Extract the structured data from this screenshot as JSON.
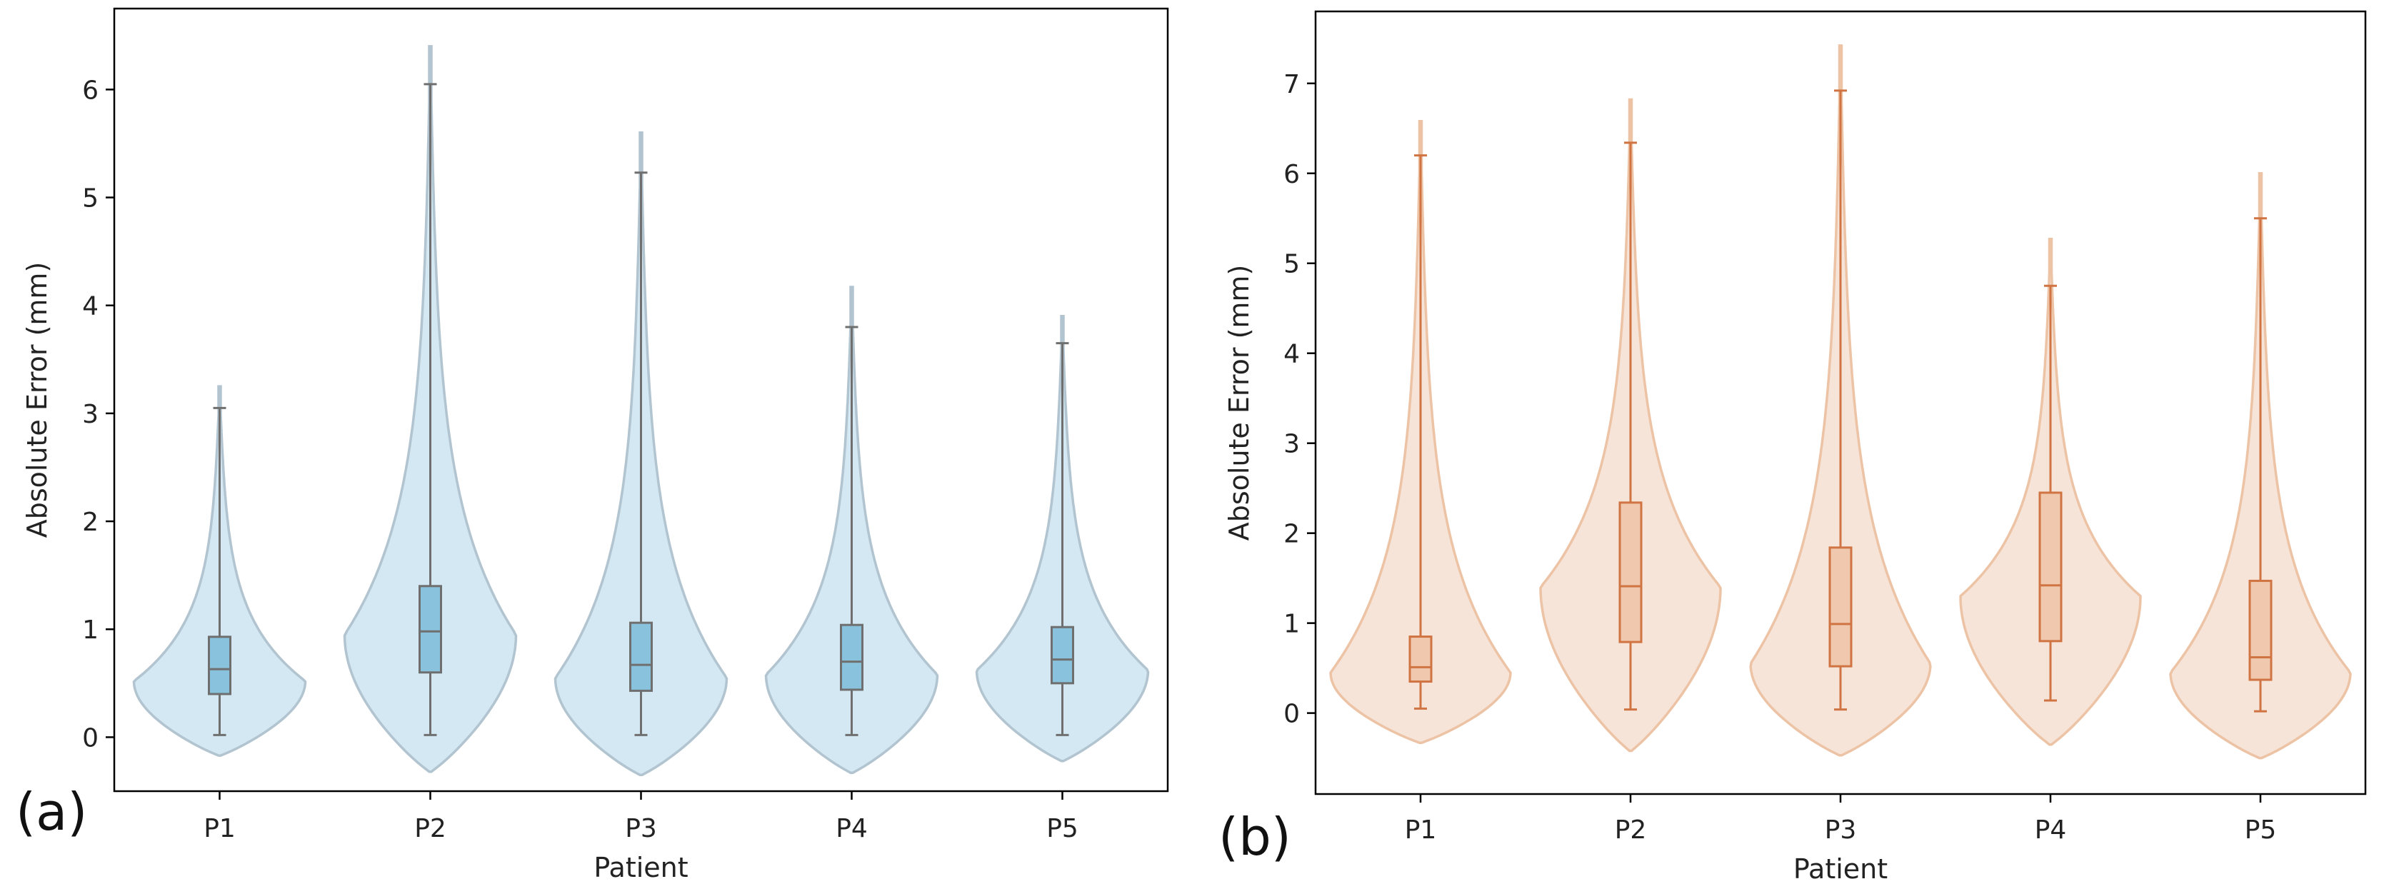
{
  "chart_data": [
    {
      "panel_label": "(a)",
      "type": "violin",
      "xlabel": "Patient",
      "ylabel": "Absolute Error (mm)",
      "ylim": [
        -0.5,
        6.75
      ],
      "yticks": [
        "0",
        "1",
        "2",
        "3",
        "4",
        "5",
        "6"
      ],
      "categories": [
        "P1",
        "P2",
        "P3",
        "P4",
        "P5"
      ],
      "colors": {
        "fill": "#d3e8f2",
        "edge": "#b2c4cf",
        "box": "#89c2dc",
        "line": "#6f6f6f"
      },
      "violins": [
        {
          "name": "P1",
          "kde_min": -0.17,
          "kde_max": 3.25,
          "whisker_low": 0.02,
          "whisker_high": 3.05,
          "q1": 0.4,
          "median": 0.63,
          "q3": 0.93,
          "mode": 0.52
        },
        {
          "name": "P2",
          "kde_min": -0.32,
          "kde_max": 6.4,
          "whisker_low": 0.02,
          "whisker_high": 6.05,
          "q1": 0.6,
          "median": 0.98,
          "q3": 1.4,
          "mode": 0.95
        },
        {
          "name": "P3",
          "kde_min": -0.35,
          "kde_max": 5.6,
          "whisker_low": 0.02,
          "whisker_high": 5.23,
          "q1": 0.43,
          "median": 0.67,
          "q3": 1.06,
          "mode": 0.55
        },
        {
          "name": "P4",
          "kde_min": -0.33,
          "kde_max": 4.17,
          "whisker_low": 0.02,
          "whisker_high": 3.8,
          "q1": 0.44,
          "median": 0.7,
          "q3": 1.04,
          "mode": 0.58
        },
        {
          "name": "P5",
          "kde_min": -0.22,
          "kde_max": 3.9,
          "whisker_low": 0.02,
          "whisker_high": 3.65,
          "q1": 0.5,
          "median": 0.72,
          "q3": 1.02,
          "mode": 0.62
        }
      ]
    },
    {
      "panel_label": "(b)",
      "type": "violin",
      "xlabel": "Patient",
      "ylabel": "Absolute Error (mm)",
      "ylim": [
        -0.9,
        7.8
      ],
      "yticks": [
        "0",
        "1",
        "2",
        "3",
        "4",
        "5",
        "6",
        "7"
      ],
      "categories": [
        "P1",
        "P2",
        "P3",
        "P4",
        "P5"
      ],
      "colors": {
        "fill": "#f7e4d8",
        "edge": "#edc3a6",
        "box": "#efc8ad",
        "line": "#cf7442"
      },
      "violins": [
        {
          "name": "P1",
          "kde_min": -0.33,
          "kde_max": 6.58,
          "whisker_low": 0.05,
          "whisker_high": 6.2,
          "q1": 0.35,
          "median": 0.51,
          "q3": 0.85,
          "mode": 0.45
        },
        {
          "name": "P2",
          "kde_min": -0.42,
          "kde_max": 6.82,
          "whisker_low": 0.04,
          "whisker_high": 6.34,
          "q1": 0.79,
          "median": 1.41,
          "q3": 2.34,
          "mode": 1.4
        },
        {
          "name": "P3",
          "kde_min": -0.47,
          "kde_max": 7.42,
          "whisker_low": 0.04,
          "whisker_high": 6.92,
          "q1": 0.52,
          "median": 0.99,
          "q3": 1.84,
          "mode": 0.55
        },
        {
          "name": "P4",
          "kde_min": -0.35,
          "kde_max": 5.27,
          "whisker_low": 0.14,
          "whisker_high": 4.75,
          "q1": 0.8,
          "median": 1.42,
          "q3": 2.45,
          "mode": 1.3
        },
        {
          "name": "P5",
          "kde_min": -0.5,
          "kde_max": 6.0,
          "whisker_low": 0.02,
          "whisker_high": 5.5,
          "q1": 0.37,
          "median": 0.62,
          "q3": 1.47,
          "mode": 0.45
        }
      ]
    }
  ]
}
